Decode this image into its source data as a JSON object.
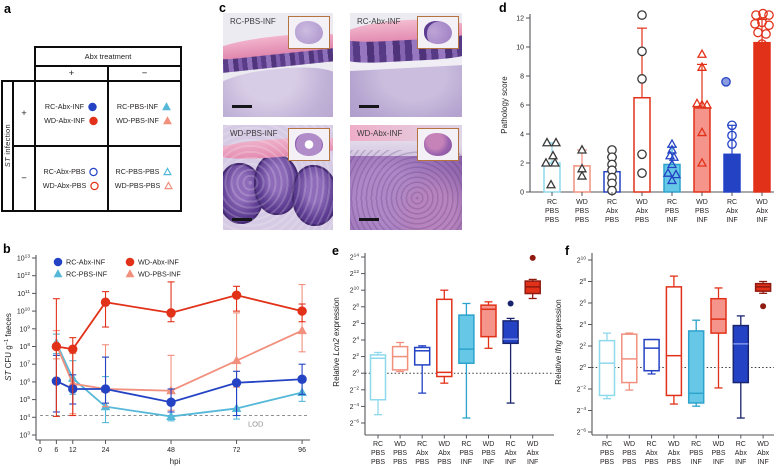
{
  "colors": {
    "blue": "#2443c4",
    "blue_dark": "#18246e",
    "cyan": "#56b8d8",
    "cyan_light": "#8ed9ec",
    "cyan_fill": "#66c8e6",
    "cyan_stroke": "#2da3cd",
    "red": "#e23119",
    "red_dark": "#8f1a10",
    "salmon": "#f2907e",
    "salmon_fill": "#f4948a",
    "black": "#3a3a3a",
    "axis": "#55565a",
    "text": "#231f20",
    "lod": "#8f9093"
  },
  "panels": {
    "a": "a",
    "b": "b",
    "c": "c",
    "d": "d",
    "e": "e",
    "f": "f"
  },
  "panel_a": {
    "col_header": "Abx treatment",
    "row_header_italic": "ST",
    "row_header_rest": " infection",
    "plus": "+",
    "minus": "−",
    "cells": [
      {
        "id": "abx-inf",
        "entries": [
          {
            "label": "RC-Abx-INF",
            "shape": "circle",
            "color": "blue",
            "filled": true
          },
          {
            "label": "WD-Abx-INF",
            "shape": "circle",
            "color": "red",
            "filled": true
          }
        ]
      },
      {
        "id": "pbs-inf",
        "entries": [
          {
            "label": "RC-PBS-INF",
            "shape": "triangle",
            "color": "cyan",
            "filled": true
          },
          {
            "label": "WD-PBS-INF",
            "shape": "triangle",
            "color": "salmon",
            "filled": true
          }
        ]
      },
      {
        "id": "abx-pbs",
        "entries": [
          {
            "label": "RC-Abx-PBS",
            "shape": "circle",
            "color": "blue",
            "filled": false
          },
          {
            "label": "WD-Abx-PBS",
            "shape": "circle",
            "color": "red",
            "filled": false
          }
        ]
      },
      {
        "id": "pbs-pbs",
        "entries": [
          {
            "label": "RC-PBS-PBS",
            "shape": "triangle",
            "color": "cyan",
            "filled": false
          },
          {
            "label": "WD-PBS-PBS",
            "shape": "triangle",
            "color": "salmon",
            "filled": false
          }
        ]
      }
    ]
  },
  "panel_c": {
    "images": [
      {
        "label": "RC-PBS-INF"
      },
      {
        "label": "RC-Abx-INF"
      },
      {
        "label": "WD-PBS-INF"
      },
      {
        "label": "WD-Abx-INF"
      }
    ]
  },
  "groups": [
    [
      "RC",
      "PBS",
      "PBS"
    ],
    [
      "WD",
      "PBS",
      "PBS"
    ],
    [
      "RC",
      "Abx",
      "PBS"
    ],
    [
      "WD",
      "Abx",
      "PBS"
    ],
    [
      "RC",
      "PBS",
      "INF"
    ],
    [
      "WD",
      "PBS",
      "INF"
    ],
    [
      "RC",
      "Abx",
      "INF"
    ],
    [
      "WD",
      "Abx",
      "INF"
    ]
  ],
  "chart_data": [
    {
      "id": "b",
      "type": "line",
      "xlabel": "hpi",
      "ylabel": {
        "italic": "ST",
        "mid": " CFU g",
        "sup": "−1",
        "end": " faeces"
      },
      "xticks": [
        0,
        6,
        12,
        24,
        48,
        72,
        96
      ],
      "x": [
        6,
        12,
        24,
        48,
        72,
        96
      ],
      "y_exp_range": [
        3,
        13
      ],
      "lod": {
        "log10": 4.1,
        "label": "LOD"
      },
      "series": [
        {
          "name": "RC-Abx-INF",
          "shape": "circle",
          "color": "blue",
          "log10": [
            6.05,
            5.6,
            5.6,
            4.85,
            5.95,
            6.15
          ],
          "lo": [
            4.3,
            4.75,
            4.8,
            4.3,
            4.1,
            5.3
          ],
          "hi": [
            7.5,
            6.4,
            7.4,
            5.6,
            6.6,
            7.0
          ]
        },
        {
          "name": "RC-PBS-INF",
          "shape": "triangle",
          "color": "cyan",
          "log10": [
            8.2,
            6.2,
            4.6,
            4.05,
            4.5,
            5.4
          ],
          "lo": [
            7.6,
            5.3,
            3.7,
            3.8,
            3.9,
            4.9
          ],
          "hi": [
            8.7,
            7.2,
            6.3,
            4.9,
            6.1,
            6.0
          ]
        },
        {
          "name": "WD-Abx-INF",
          "shape": "circle",
          "color": "red",
          "log10": [
            8.0,
            7.85,
            10.5,
            9.9,
            10.9,
            10.0
          ],
          "lo": [
            4.05,
            4.1,
            9.1,
            9.4,
            10.0,
            9.4
          ],
          "hi": [
            10.7,
            8.5,
            11.1,
            11.65,
            11.4,
            10.4
          ]
        },
        {
          "name": "WD-PBS-INF",
          "shape": "triangle",
          "color": "salmon",
          "log10": [
            8.1,
            5.9,
            5.6,
            5.5,
            7.2,
            8.9
          ],
          "lo": [
            7.3,
            4.2,
            4.6,
            4.4,
            5.7,
            7.7
          ],
          "hi": [
            8.9,
            7.6,
            8.1,
            7.5,
            9.9,
            11.5
          ]
        }
      ],
      "legend_rows": [
        [
          0,
          2
        ],
        [
          1,
          3
        ]
      ]
    },
    {
      "id": "d",
      "type": "bar",
      "ylabel": "Pathology score",
      "ylim": [
        0,
        12
      ],
      "yticks": [
        0,
        2,
        4,
        6,
        8,
        10,
        12
      ],
      "bars": [
        {
          "value": 2.0,
          "err_hi": 3.4,
          "stroke": "cyan_light",
          "fill": null,
          "marker": "triangle",
          "mcolor": "black",
          "points": [
            [
              -5,
              3.4
            ],
            [
              4,
              3.4
            ],
            [
              1,
              2.5
            ],
            [
              -6,
              2.0
            ],
            [
              3,
              2.0
            ],
            [
              -1,
              0.5
            ]
          ]
        },
        {
          "value": 1.8,
          "err_hi": 2.9,
          "stroke": "salmon",
          "fill": null,
          "marker": "triangle",
          "mcolor": "black",
          "points": [
            [
              0,
              2.9
            ],
            [
              0,
              1.6
            ],
            [
              0,
              1.1
            ]
          ]
        },
        {
          "value": 1.4,
          "err_hi": 2.4,
          "stroke": "blue",
          "fill": null,
          "marker": "circle",
          "mcolor": "black",
          "points": [
            [
              0,
              2.9
            ],
            [
              0,
              2.4
            ],
            [
              0,
              1.9
            ],
            [
              0,
              1.5
            ],
            [
              0,
              1.0
            ],
            [
              0,
              0.6
            ],
            [
              0,
              0.1
            ]
          ]
        },
        {
          "value": 6.5,
          "err_hi": 11.3,
          "stroke": "red",
          "fill": null,
          "marker": "circle",
          "mcolor": "black",
          "points": [
            [
              0,
              12.2
            ],
            [
              0,
              9.7
            ],
            [
              0,
              7.8
            ],
            [
              0,
              2.6
            ],
            [
              0,
              1.3
            ]
          ]
        },
        {
          "value": 1.9,
          "err_hi": 3.1,
          "stroke": "cyan_stroke",
          "fill": "cyan_fill",
          "marker": "triangle",
          "mcolor": "blue",
          "points": [
            [
              0,
              3.3
            ],
            [
              0,
              2.9
            ],
            [
              -2,
              2.5
            ],
            [
              2,
              2.4
            ],
            [
              0,
              1.9
            ],
            [
              -4,
              1.3
            ],
            [
              4,
              1.2
            ],
            [
              0,
              0.8
            ]
          ]
        },
        {
          "value": 5.8,
          "err_hi": 8.8,
          "stroke": "red",
          "fill": "salmon_fill",
          "marker": "triangle",
          "mcolor": "red",
          "points": [
            [
              0,
              9.5
            ],
            [
              0,
              8.6
            ],
            [
              -5,
              6.1
            ],
            [
              0,
              6.0
            ],
            [
              5,
              6.0
            ],
            [
              0,
              4.1
            ],
            [
              0,
              2.0
            ]
          ]
        },
        {
          "value": 2.6,
          "err_hi": 4.6,
          "stroke": "blue",
          "fill": "blue",
          "marker": "circle",
          "mcolor": "blue",
          "points": [
            [
              0,
              4.6
            ],
            [
              0,
              3.9
            ],
            [
              0,
              3.3
            ],
            [
              -3,
              2.3
            ],
            [
              3,
              2.2
            ],
            [
              -3,
              1.8
            ],
            [
              3,
              1.7
            ],
            [
              0,
              1.3
            ]
          ],
          "extra": [
            {
              "dx": -6,
              "v": 7.6,
              "fill": "#8b9ce0",
              "stroke": "#2443c4"
            }
          ]
        },
        {
          "value": 10.3,
          "err_hi": 11.9,
          "stroke": "red",
          "fill": "red",
          "marker": "circle",
          "mcolor": "red",
          "points": [
            [
              -6,
              12.2
            ],
            [
              1,
              12.3
            ],
            [
              7,
              12.2
            ],
            [
              -7,
              11.6
            ],
            [
              0,
              11.7
            ],
            [
              7,
              11.5
            ],
            [
              -4,
              11.0
            ],
            [
              4,
              10.9
            ],
            [
              0,
              10.2
            ],
            [
              0,
              6.4
            ],
            [
              0,
              5.7
            ]
          ]
        }
      ]
    },
    {
      "id": "e",
      "type": "box",
      "ylabel": {
        "prefix": "Relative ",
        "gene": "Lcn2",
        "suffix": " expression"
      },
      "y_exp_range": [
        -6,
        14
      ],
      "baseline_exp": 0,
      "boxes": [
        {
          "stroke": "cyan_light",
          "fill": null,
          "lo": -5.0,
          "q1": -3.2,
          "med": 1.8,
          "q3": 2.2,
          "hi": 2.5
        },
        {
          "stroke": "salmon",
          "fill": null,
          "lo": 0.2,
          "q1": 0.4,
          "med": 2.0,
          "q3": 3.2,
          "hi": 3.7
        },
        {
          "stroke": "blue",
          "fill": null,
          "lo": -2.4,
          "q1": 1.0,
          "med": 2.7,
          "q3": 3.1,
          "hi": 3.3
        },
        {
          "stroke": "red",
          "fill": null,
          "lo": -1.2,
          "q1": -0.4,
          "med": 0.1,
          "q3": 8.9,
          "hi": 10.0
        },
        {
          "stroke": "cyan_stroke",
          "fill": "cyan_fill",
          "lo": -5.4,
          "q1": 1.2,
          "med": 2.9,
          "q3": 7.0,
          "hi": 8.4
        },
        {
          "stroke": "red",
          "fill": "salmon_fill",
          "lo": 3.0,
          "q1": 4.4,
          "med": 7.7,
          "q3": 8.2,
          "hi": 8.6
        },
        {
          "stroke": "blue_dark",
          "fill": "blue",
          "med_color": "#7f95ea",
          "lo": -3.6,
          "q1": 3.6,
          "med": 4.1,
          "q3": 6.3,
          "hi": 6.6,
          "outliers": [
            {
              "v": 8.4,
              "fill": "blue_dark"
            }
          ]
        },
        {
          "stroke": "red_dark",
          "fill": "red",
          "lo": 9.0,
          "q1": 9.6,
          "med": 10.4,
          "q3": 11.1,
          "hi": 11.3,
          "outliers": [
            {
              "v": 13.9,
              "fill": "red_dark"
            }
          ]
        }
      ]
    },
    {
      "id": "f",
      "type": "box",
      "ylabel": {
        "prefix": "Relative ",
        "gene": "Ifng",
        "suffix": " expression"
      },
      "y_exp_range": [
        -6,
        10
      ],
      "baseline_exp": 0,
      "boxes": [
        {
          "stroke": "cyan_light",
          "fill": null,
          "lo": -2.9,
          "q1": -2.6,
          "med": 0.4,
          "q3": 2.5,
          "hi": 3.2
        },
        {
          "stroke": "salmon",
          "fill": null,
          "lo": -2.1,
          "q1": -1.4,
          "med": 0.8,
          "q3": 3.1,
          "hi": 3.2
        },
        {
          "stroke": "blue",
          "fill": null,
          "lo": -0.6,
          "q1": -0.3,
          "med": 1.8,
          "q3": 2.6,
          "hi": 2.6
        },
        {
          "stroke": "red",
          "fill": null,
          "lo": -3.4,
          "q1": -2.6,
          "med": 1.1,
          "q3": 7.5,
          "hi": 8.5
        },
        {
          "stroke": "cyan_stroke",
          "fill": "cyan_fill",
          "lo": -3.6,
          "q1": -3.3,
          "med": -2.4,
          "q3": 3.4,
          "hi": 4.4
        },
        {
          "stroke": "red",
          "fill": "salmon_fill",
          "lo": -1.9,
          "q1": 3.2,
          "med": 4.5,
          "q3": 6.4,
          "hi": 7.4
        },
        {
          "stroke": "blue_dark",
          "fill": "blue",
          "med_color": "#7f95ea",
          "lo": -4.7,
          "q1": -1.4,
          "med": 2.2,
          "q3": 3.9,
          "hi": 4.8
        },
        {
          "stroke": "red_dark",
          "fill": "red",
          "lo": 6.9,
          "q1": 7.1,
          "med": 7.5,
          "q3": 7.8,
          "hi": 8.0,
          "outliers": [
            {
              "v": 5.7,
              "fill": "red_dark"
            }
          ]
        }
      ]
    }
  ]
}
